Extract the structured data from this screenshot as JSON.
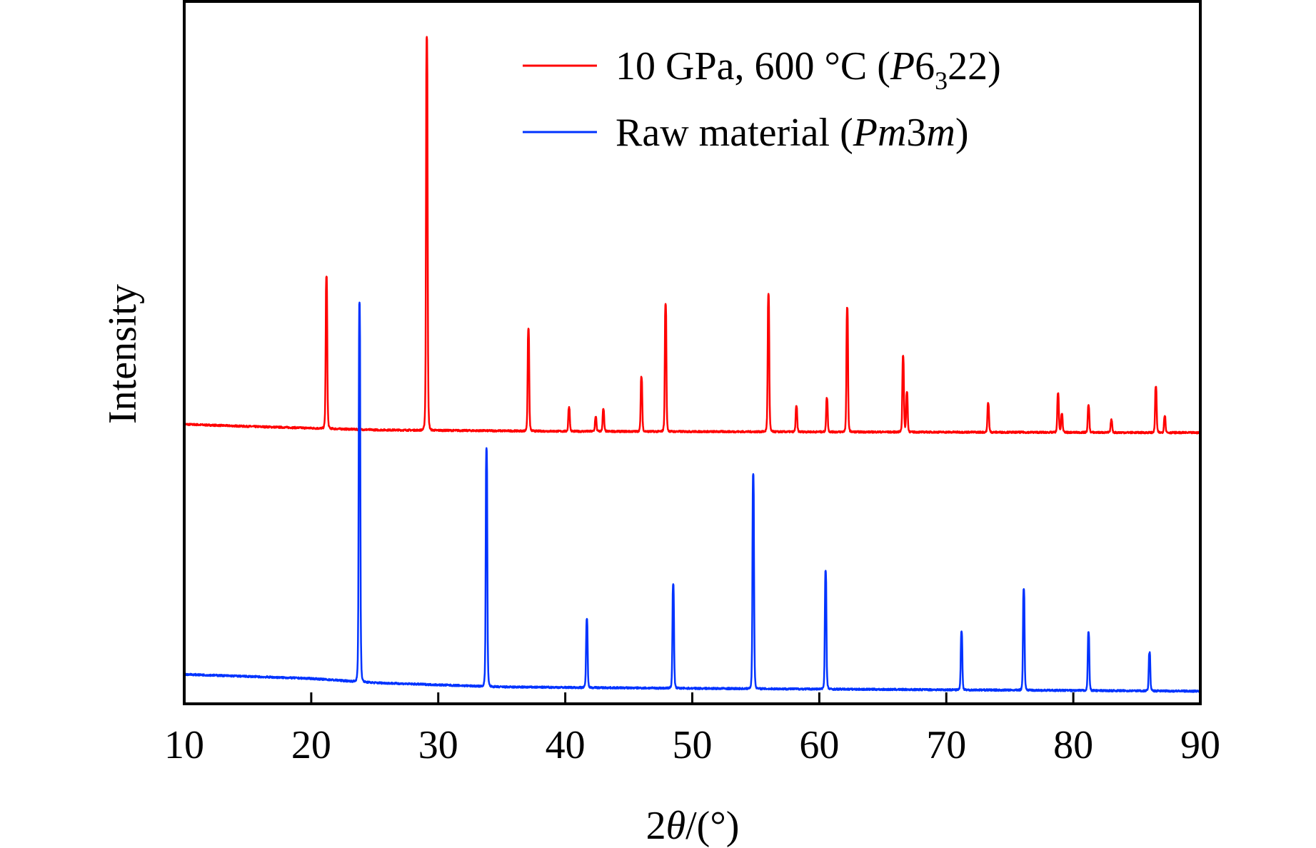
{
  "chart_data": {
    "type": "line",
    "title": "",
    "xlabel": "2θ/(°)",
    "xlabel_parts": {
      "pre": "2",
      "theta": "θ",
      "post": "/(°)"
    },
    "ylabel": "Intensity",
    "xlim": [
      10,
      90
    ],
    "ylim": [
      0,
      100
    ],
    "x_ticks": [
      10,
      20,
      30,
      40,
      50,
      60,
      70,
      80,
      90
    ],
    "y_ticks": [],
    "grid": false,
    "legend_position": "top-right",
    "series": [
      {
        "name": "10 GPa, 600 °C (P6322)",
        "legend_parts": {
          "main": "10 GPa, 600 °C (",
          "italic": "P",
          "mid": "6",
          "sub": "3",
          "post": "22)"
        },
        "color": "#ff0000",
        "baseline": [
          [
            10,
            39.8
          ],
          [
            15,
            39.5
          ],
          [
            25,
            39.0
          ],
          [
            40,
            38.8
          ],
          [
            90,
            38.6
          ]
        ],
        "peaks": [
          [
            21.2,
            60.8
          ],
          [
            29.1,
            95.0
          ],
          [
            37.1,
            53.3
          ],
          [
            40.3,
            42.2
          ],
          [
            42.4,
            40.8
          ],
          [
            43.0,
            41.9
          ],
          [
            46.0,
            46.5
          ],
          [
            47.9,
            56.9
          ],
          [
            56.0,
            58.3
          ],
          [
            58.2,
            42.3
          ],
          [
            60.6,
            43.5
          ],
          [
            62.2,
            56.4
          ],
          [
            66.6,
            49.5
          ],
          [
            66.9,
            44.3
          ],
          [
            73.3,
            42.8
          ],
          [
            78.8,
            44.2
          ],
          [
            79.1,
            41.3
          ],
          [
            81.2,
            42.5
          ],
          [
            83.0,
            40.4
          ],
          [
            86.5,
            45.1
          ],
          [
            87.2,
            41.0
          ]
        ]
      },
      {
        "name": "Raw material (Pm3m)",
        "legend_parts": {
          "main": "Raw material (",
          "italic1": "Pm",
          "mid": "3",
          "italic2": "m",
          "post": ")"
        },
        "color": "#0033ff",
        "baseline": [
          [
            10,
            4.2
          ],
          [
            20,
            3.6
          ],
          [
            25,
            3.0
          ],
          [
            35,
            2.4
          ],
          [
            50,
            2.2
          ],
          [
            90,
            1.8
          ]
        ],
        "peaks": [
          [
            23.8,
            57.2
          ],
          [
            33.8,
            36.3
          ],
          [
            41.7,
            12.0
          ],
          [
            48.5,
            17.0
          ],
          [
            54.8,
            32.7
          ],
          [
            60.5,
            18.9
          ],
          [
            71.2,
            10.3
          ],
          [
            76.1,
            16.4
          ],
          [
            81.2,
            10.2
          ],
          [
            86.0,
            7.3
          ]
        ]
      }
    ]
  }
}
